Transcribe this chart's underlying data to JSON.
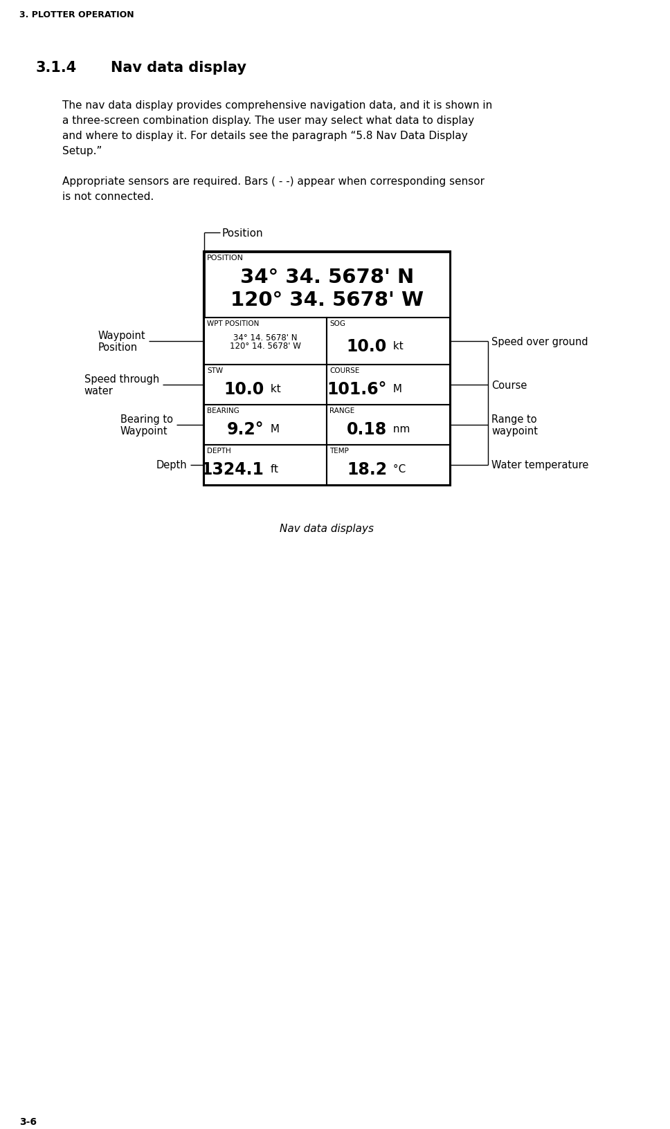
{
  "page_header": "3. PLOTTER OPERATION",
  "page_number": "3-6",
  "section_number": "3.1.4",
  "section_title": "Nav data display",
  "para1_lines": [
    "The nav data display provides comprehensive navigation data, and it is shown in",
    "a three-screen combination display. The user may select what data to display",
    "and where to display it. For details see the paragraph “5.8 Nav Data Display",
    "Setup.”"
  ],
  "para2_lines": [
    "Appropriate sensors are required. Bars ( - -) appear when corresponding sensor",
    "is not connected."
  ],
  "caption": "Nav data displays",
  "bg_color": "#ffffff",
  "position_label": "POSITION",
  "position_value1": "34° 34. 5678' N",
  "position_value2": "120° 34. 5678' W",
  "wpt_position_label": "WPT POSITION",
  "wpt_position_value1": "34° 14. 5678' N",
  "wpt_position_value2": "120° 14. 5678' W",
  "sog_label": "SOG",
  "sog_value": "10.0",
  "sog_unit": "kt",
  "stw_label": "STW",
  "stw_value": "10.0",
  "stw_unit": "kt",
  "course_label": "COURSE",
  "course_value": "101.6°",
  "course_unit": "M",
  "bearing_label": "BEARING",
  "bearing_value": "9.2°",
  "bearing_unit": "M",
  "range_label": "RANGE",
  "range_value": "0.18",
  "range_unit": "nm",
  "depth_label": "DEPTH",
  "depth_value": "1324.1",
  "depth_unit": "ft",
  "temp_label": "TEMP",
  "temp_value": "18.2",
  "temp_unit": "°C",
  "ann_position": "Position",
  "ann_depth": "Depth",
  "ann_water_temp": "Water temperature",
  "ann_bearing": "Bearing to\nWaypoint",
  "ann_range": "Range to\nwaypoint",
  "ann_stw": "Speed through\nwater",
  "ann_course": "Course",
  "ann_wpt": "Waypoint\nPosition",
  "ann_sog": "Speed over ground"
}
